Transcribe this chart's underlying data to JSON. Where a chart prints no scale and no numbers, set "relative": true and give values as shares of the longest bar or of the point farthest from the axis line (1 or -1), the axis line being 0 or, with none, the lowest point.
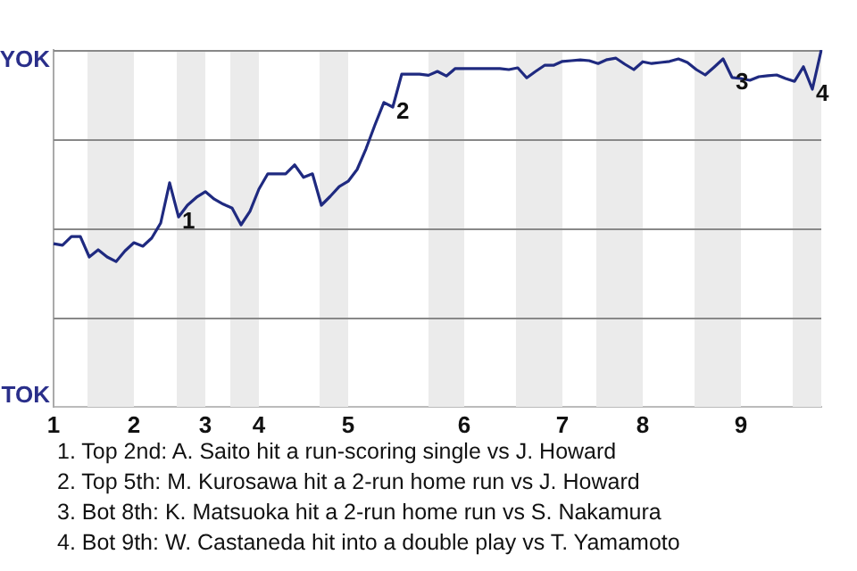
{
  "chart_data": {
    "type": "line",
    "relative": true,
    "categories": [
      "1",
      null,
      null,
      null,
      null,
      null,
      null,
      null,
      null,
      "2",
      null,
      null,
      null,
      null,
      null,
      null,
      null,
      "3",
      null,
      null,
      null,
      null,
      null,
      "4",
      null,
      null,
      null,
      null,
      null,
      null,
      null,
      null,
      null,
      "5",
      null,
      null,
      null,
      null,
      null,
      null,
      null,
      null,
      null,
      null,
      null,
      null,
      "6",
      null,
      null,
      null,
      null,
      null,
      null,
      null,
      null,
      null,
      null,
      "7",
      null,
      null,
      null,
      null,
      null,
      null,
      null,
      null,
      "8",
      null,
      null,
      null,
      null,
      null,
      null,
      null,
      null,
      null,
      null,
      "9",
      null,
      null,
      null,
      null,
      null,
      null,
      null,
      null,
      null
    ],
    "values": [
      0.457,
      0.453,
      0.477,
      0.477,
      0.42,
      0.44,
      0.42,
      0.407,
      0.437,
      0.46,
      0.45,
      0.473,
      0.515,
      0.628,
      0.532,
      0.565,
      0.587,
      0.603,
      0.582,
      0.568,
      0.557,
      0.51,
      0.548,
      0.61,
      0.653,
      0.653,
      0.653,
      0.678,
      0.643,
      0.653,
      0.565,
      0.59,
      0.617,
      0.632,
      0.665,
      0.723,
      0.79,
      0.853,
      0.84,
      0.932,
      0.932,
      0.932,
      0.929,
      0.94,
      0.927,
      0.948,
      0.948,
      0.948,
      0.948,
      0.948,
      0.948,
      0.945,
      0.95,
      0.922,
      0.94,
      0.957,
      0.957,
      0.968,
      0.97,
      0.972,
      0.97,
      0.962,
      0.973,
      0.977,
      0.96,
      0.945,
      0.967,
      0.962,
      0.965,
      0.968,
      0.975,
      0.965,
      0.945,
      0.93,
      0.952,
      0.975,
      0.923,
      0.92,
      0.915,
      0.925,
      0.928,
      0.93,
      0.92,
      0.912,
      0.953,
      0.89,
      1
    ],
    "color": "#1f2a80",
    "grid": "y",
    "annotations": [
      {
        "text": "1",
        "y": 0.532
      },
      {
        "text": "2",
        "y": 0.84
      },
      {
        "text": "3",
        "y": 0.923
      },
      {
        "text": "4",
        "y": 0.89
      },
      "YOK",
      "TOK",
      "1. Top 2nd: A. Saito hit a run-scoring single vs J. Howard",
      "2. Top 5th: M. Kurosawa hit a 2-run home run vs J. Howard",
      "3. Bot 8th: K. Matsuoka hit a 2-run home run vs S. Nakamura",
      "4. Bot 9th: W. Castaneda hit into a double play vs T. Yamamoto"
    ]
  }
}
